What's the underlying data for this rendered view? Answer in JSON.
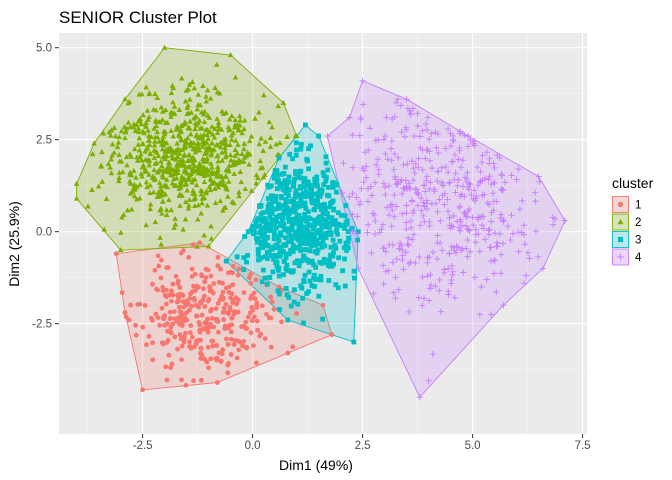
{
  "chart_data": {
    "type": "scatter",
    "title": "SENIOR Cluster Plot",
    "xlabel": "Dim1 (49%)",
    "ylabel": "Dim2 (25.9%)",
    "xlim": [
      -4.4,
      7.6
    ],
    "ylim": [
      -5.5,
      5.4
    ],
    "x_ticks": [
      {
        "value": -2.5,
        "label": "-2.5"
      },
      {
        "value": 0,
        "label": "0.0"
      },
      {
        "value": 2.5,
        "label": "2.5"
      },
      {
        "value": 5,
        "label": "5.0"
      },
      {
        "value": 7.5,
        "label": "7.5"
      }
    ],
    "y_ticks": [
      {
        "value": 5,
        "label": "5.0"
      },
      {
        "value": 2.5,
        "label": "2.5"
      },
      {
        "value": 0,
        "label": "0.0"
      },
      {
        "value": -2.5,
        "label": "-2.5"
      }
    ],
    "grid": true,
    "background": "#ebebeb",
    "legend": {
      "title": "cluster",
      "placement": "right",
      "entries": [
        "1",
        "2",
        "3",
        "4"
      ]
    },
    "series": [
      {
        "name": "1",
        "shape": "circle",
        "color": "#F8766D",
        "center": [
          -1.1,
          -2.3
        ],
        "spread": [
          0.75,
          0.85
        ],
        "count": 330,
        "seed": 11,
        "hull": [
          [
            -3.1,
            -0.6
          ],
          [
            -1.2,
            -0.3
          ],
          [
            0.6,
            -1.5
          ],
          [
            1.6,
            -2.0
          ],
          [
            1.8,
            -2.8
          ],
          [
            0.8,
            -3.3
          ],
          [
            -0.8,
            -4.1
          ],
          [
            -2.5,
            -4.3
          ],
          [
            -2.9,
            -2.2
          ]
        ]
      },
      {
        "name": "2",
        "shape": "triangle",
        "color": "#7CAE00",
        "center": [
          -1.6,
          2.0
        ],
        "spread": [
          0.9,
          0.85
        ],
        "count": 680,
        "seed": 23,
        "hull": [
          [
            -2.0,
            5.0
          ],
          [
            -0.5,
            4.8
          ],
          [
            0.7,
            3.5
          ],
          [
            1.0,
            2.6
          ],
          [
            -1.0,
            -0.4
          ],
          [
            -3.0,
            -0.5
          ],
          [
            -4.0,
            0.9
          ],
          [
            -4.0,
            1.3
          ],
          [
            -3.6,
            2.4
          ],
          [
            -2.9,
            3.6
          ]
        ]
      },
      {
        "name": "3",
        "shape": "square",
        "color": "#00BFC4",
        "center": [
          1.0,
          0.3
        ],
        "spread": [
          0.65,
          0.95
        ],
        "count": 620,
        "seed": 37,
        "hull": [
          [
            1.2,
            2.9
          ],
          [
            1.5,
            2.6
          ],
          [
            2.4,
            0.0
          ],
          [
            2.3,
            -3.0
          ],
          [
            0.8,
            -2.4
          ],
          [
            -0.6,
            -0.8
          ],
          [
            -0.1,
            0.0
          ],
          [
            0.6,
            2.0
          ]
        ]
      },
      {
        "name": "4",
        "shape": "plus",
        "color": "#C77CFF",
        "center": [
          4.2,
          0.9
        ],
        "spread": [
          1.3,
          1.45
        ],
        "count": 460,
        "seed": 53,
        "hull": [
          [
            2.2,
            3.1
          ],
          [
            2.5,
            4.1
          ],
          [
            3.5,
            3.6
          ],
          [
            4.9,
            2.6
          ],
          [
            6.5,
            1.5
          ],
          [
            7.1,
            0.3
          ],
          [
            6.6,
            -1.0
          ],
          [
            5.7,
            -2.0
          ],
          [
            3.8,
            -4.5
          ],
          [
            2.4,
            -1.0
          ],
          [
            1.7,
            2.6
          ]
        ]
      }
    ]
  }
}
